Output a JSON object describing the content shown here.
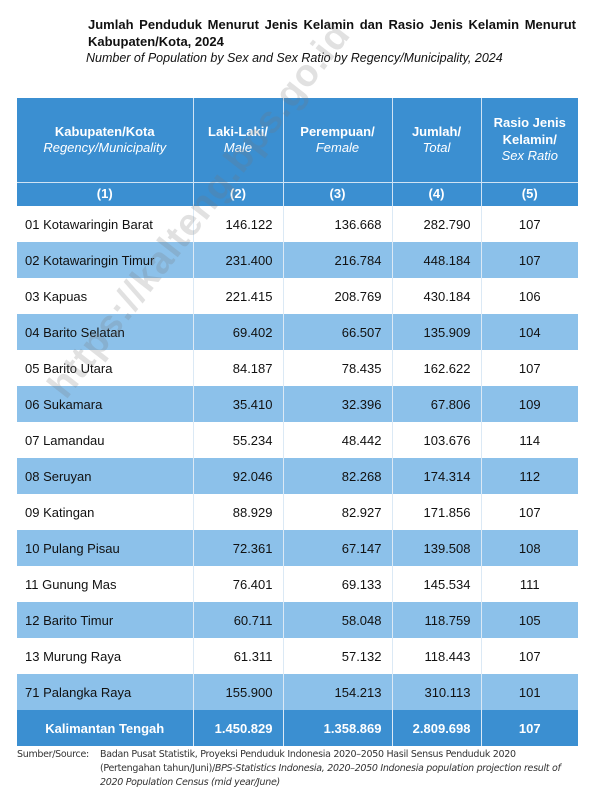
{
  "header": {
    "title": "Jumlah Penduduk Menurut Jenis Kelamin dan Rasio Jenis Kelamin Menurut Kabupaten/Kota, 2024",
    "subtitle": "Number of Population by Sex and Sex Ratio by Regency/Municipality, 2024"
  },
  "table": {
    "columns": [
      {
        "label": "Kabupaten/Kota",
        "label_en": "Regency/Municipality",
        "number": "(1)"
      },
      {
        "label": "Laki-Laki/",
        "label_en": "Male",
        "number": "(2)"
      },
      {
        "label": "Perempuan/",
        "label_en": "Female",
        "number": "(3)"
      },
      {
        "label": "Jumlah/",
        "label_en": "Total",
        "number": "(4)"
      },
      {
        "label": "Rasio Jenis Kelamin/",
        "label_en": "Sex Ratio",
        "number": "(5)"
      }
    ],
    "rows": [
      [
        "01 Kotawaringin Barat",
        "146.122",
        "136.668",
        "282.790",
        "107"
      ],
      [
        "02 Kotawaringin Timur",
        "231.400",
        "216.784",
        "448.184",
        "107"
      ],
      [
        "03 Kapuas",
        "221.415",
        "208.769",
        "430.184",
        "106"
      ],
      [
        "04 Barito Selatan",
        "69.402",
        "66.507",
        "135.909",
        "104"
      ],
      [
        "05 Barito Utara",
        "84.187",
        "78.435",
        "162.622",
        "107"
      ],
      [
        "06 Sukamara",
        "35.410",
        "32.396",
        "67.806",
        "109"
      ],
      [
        "07 Lamandau",
        "55.234",
        "48.442",
        "103.676",
        "114"
      ],
      [
        "08 Seruyan",
        "92.046",
        "82.268",
        "174.314",
        "112"
      ],
      [
        "09 Katingan",
        "88.929",
        "82.927",
        "171.856",
        "107"
      ],
      [
        "10 Pulang Pisau",
        "72.361",
        "67.147",
        "139.508",
        "108"
      ],
      [
        "11 Gunung Mas",
        "76.401",
        "69.133",
        "145.534",
        "111"
      ],
      [
        "12 Barito Timur",
        "60.711",
        "58.048",
        "118.759",
        "105"
      ],
      [
        "13 Murung Raya",
        "61.311",
        "57.132",
        "118.443",
        "107"
      ],
      [
        "71 Palangka Raya",
        "155.900",
        "154.213",
        "310.113",
        "101"
      ]
    ],
    "total": [
      "Kalimantan Tengah",
      "1.450.829",
      "1.358.869",
      "2.809.698",
      "107"
    ]
  },
  "watermark": "https://kalteng.bps.go.id",
  "footer": {
    "label": "Sumber/Source:",
    "text": "Badan Pusat Statistik, Proyeksi Penduduk Indonesia 2020–2050 Hasil Sensus Penduduk 2020 (Pertengahan tahun/Juni)/",
    "text_en": "BPS-Statistics Indonesia, 2020–2050 Indonesia population projection result of 2020 Population Census (mid year/June)"
  }
}
